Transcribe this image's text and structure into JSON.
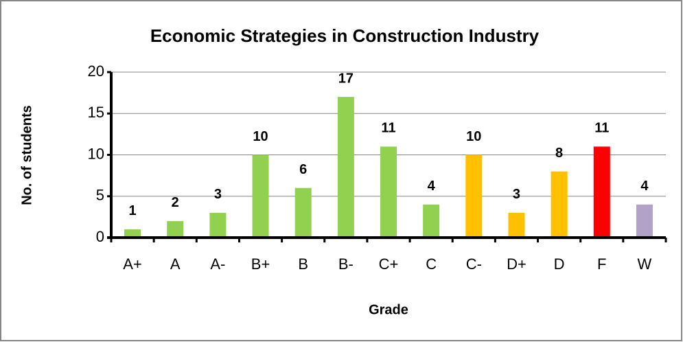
{
  "chart_data": {
    "type": "bar",
    "title": "Economic Strategies in Construction Industry",
    "x_label": "Grade",
    "y_label": "No. of students",
    "categories": [
      "A+",
      "A",
      "A-",
      "B+",
      "B",
      "B-",
      "C+",
      "C",
      "C-",
      "D+",
      "D",
      "F",
      "W"
    ],
    "values": [
      1,
      2,
      3,
      10,
      6,
      17,
      11,
      4,
      10,
      3,
      8,
      11,
      4
    ],
    "colors": [
      "#92d050",
      "#92d050",
      "#92d050",
      "#92d050",
      "#92d050",
      "#92d050",
      "#92d050",
      "#92d050",
      "#ffc000",
      "#ffc000",
      "#ffc000",
      "#ff0000",
      "#b3a2c7"
    ],
    "ylim": [
      0,
      20
    ],
    "yticks": [
      0,
      5,
      10,
      15,
      20
    ],
    "grid": true
  }
}
